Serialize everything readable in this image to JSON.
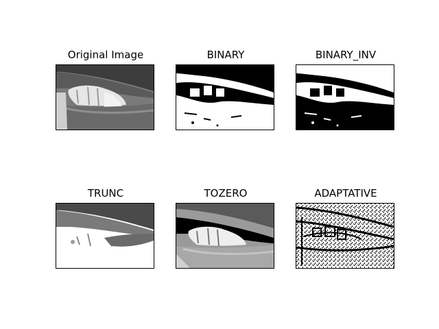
{
  "figure": {
    "panels": [
      {
        "title": "Original Image"
      },
      {
        "title": "BINARY"
      },
      {
        "title": "BINARY_INV"
      },
      {
        "title": "TRUNC"
      },
      {
        "title": "TOZERO"
      },
      {
        "title": "ADAPTATIVE"
      }
    ]
  }
}
